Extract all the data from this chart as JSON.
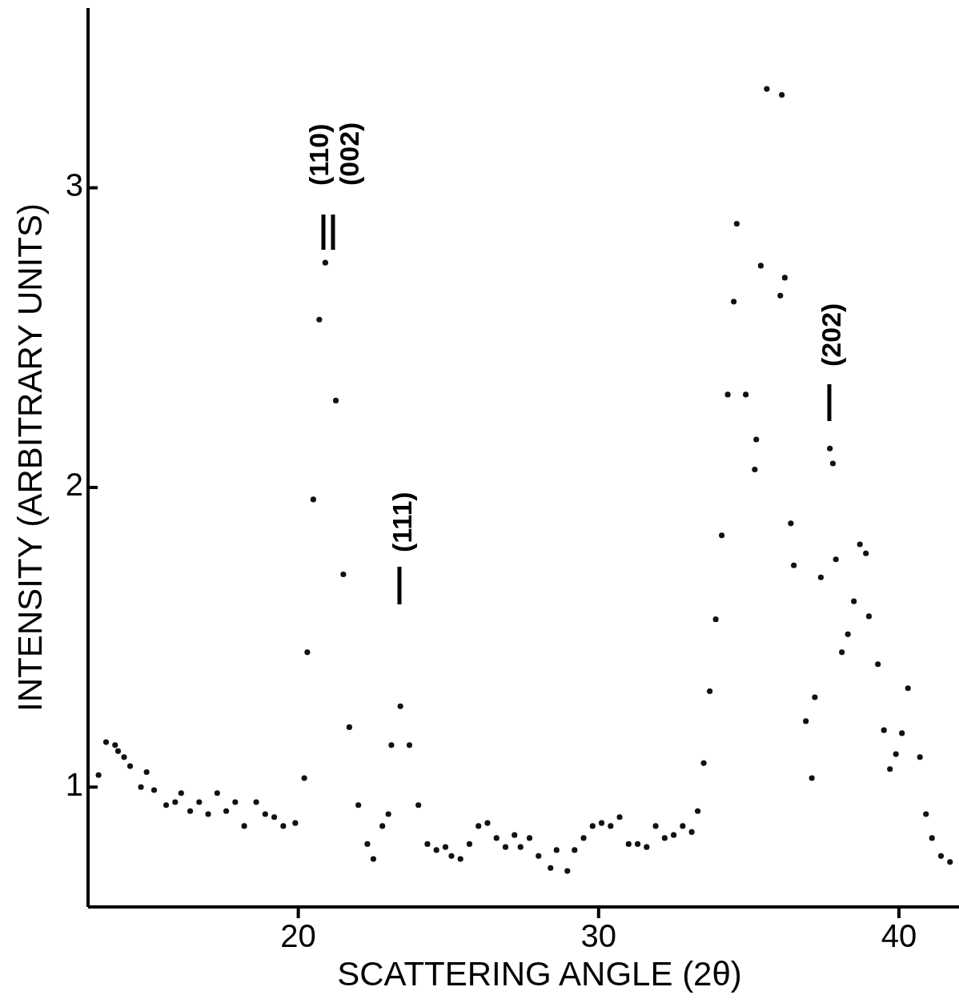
{
  "chart_data": {
    "type": "scatter",
    "xlabel": "SCATTERING ANGLE (2θ)",
    "ylabel": "INTENSITY (ARBITRARY UNITS)",
    "xlim": [
      13,
      42
    ],
    "ylim": [
      0.6,
      3.6
    ],
    "xticks": [
      20,
      30,
      40
    ],
    "yticks": [
      1,
      2,
      3
    ],
    "marker": "circle",
    "annotations": [
      "(110)",
      "(002)",
      "(111)",
      "(202)"
    ],
    "series": [
      {
        "color": "#111111",
        "x": [
          13.35,
          13.6,
          13.9,
          14.0,
          14.2,
          14.4,
          14.76,
          14.95,
          15.2,
          15.6,
          15.9,
          16.1,
          16.4,
          16.7,
          17.0,
          17.3,
          17.6,
          17.9,
          18.2,
          18.6,
          18.9,
          19.2,
          19.5,
          19.9,
          20.2,
          20.3,
          20.5,
          20.7,
          20.9,
          21.25,
          21.5,
          21.7,
          22.0,
          22.3,
          22.5,
          22.8,
          23.0,
          23.1,
          23.4,
          23.7,
          24.0,
          24.3,
          24.6,
          24.9,
          25.1,
          25.4,
          25.7,
          26.0,
          26.3,
          26.6,
          26.9,
          27.2,
          27.4,
          27.7,
          28.0,
          28.4,
          28.6,
          28.96,
          29.2,
          29.5,
          29.8,
          30.1,
          30.4,
          30.7,
          31.0,
          31.3,
          31.6,
          31.9,
          32.2,
          32.5,
          32.8,
          33.1,
          33.3,
          33.5,
          33.7,
          33.9,
          34.1,
          34.3,
          34.5,
          34.6,
          34.9,
          35.2,
          35.25,
          35.4,
          35.6,
          36.1,
          36.05,
          36.2,
          36.4,
          36.5,
          36.9,
          37.1,
          37.2,
          37.4,
          37.7,
          37.8,
          37.9,
          38.1,
          38.3,
          38.5,
          38.7,
          38.9,
          39.0,
          39.3,
          39.5,
          39.7,
          39.9,
          40.1,
          40.3,
          40.7,
          40.9,
          41.1,
          41.4,
          41.7
        ],
        "values": [
          1.04,
          1.15,
          1.14,
          1.12,
          1.1,
          1.07,
          1.0,
          1.05,
          0.99,
          0.94,
          0.95,
          0.98,
          0.92,
          0.95,
          0.91,
          0.98,
          0.92,
          0.95,
          0.87,
          0.95,
          0.91,
          0.9,
          0.87,
          0.88,
          1.03,
          1.45,
          1.96,
          2.56,
          2.75,
          2.29,
          1.71,
          1.2,
          0.94,
          0.81,
          0.76,
          0.87,
          0.91,
          1.14,
          1.27,
          1.14,
          0.94,
          0.81,
          0.79,
          0.8,
          0.77,
          0.76,
          0.81,
          0.87,
          0.88,
          0.83,
          0.8,
          0.84,
          0.8,
          0.83,
          0.77,
          0.73,
          0.79,
          0.72,
          0.79,
          0.83,
          0.87,
          0.88,
          0.87,
          0.9,
          0.81,
          0.81,
          0.8,
          0.87,
          0.83,
          0.84,
          0.87,
          0.85,
          0.92,
          1.08,
          1.32,
          1.56,
          1.84,
          2.31,
          2.62,
          2.88,
          2.31,
          2.06,
          2.16,
          2.74,
          3.33,
          3.31,
          2.64,
          2.7,
          1.88,
          1.74,
          1.22,
          1.03,
          1.3,
          1.7,
          2.13,
          2.08,
          1.76,
          1.45,
          1.51,
          1.62,
          1.81,
          1.78,
          1.57,
          1.41,
          1.19,
          1.06,
          1.11,
          1.18,
          1.33,
          1.1,
          0.91,
          0.83,
          0.77,
          0.75
        ]
      }
    ]
  }
}
